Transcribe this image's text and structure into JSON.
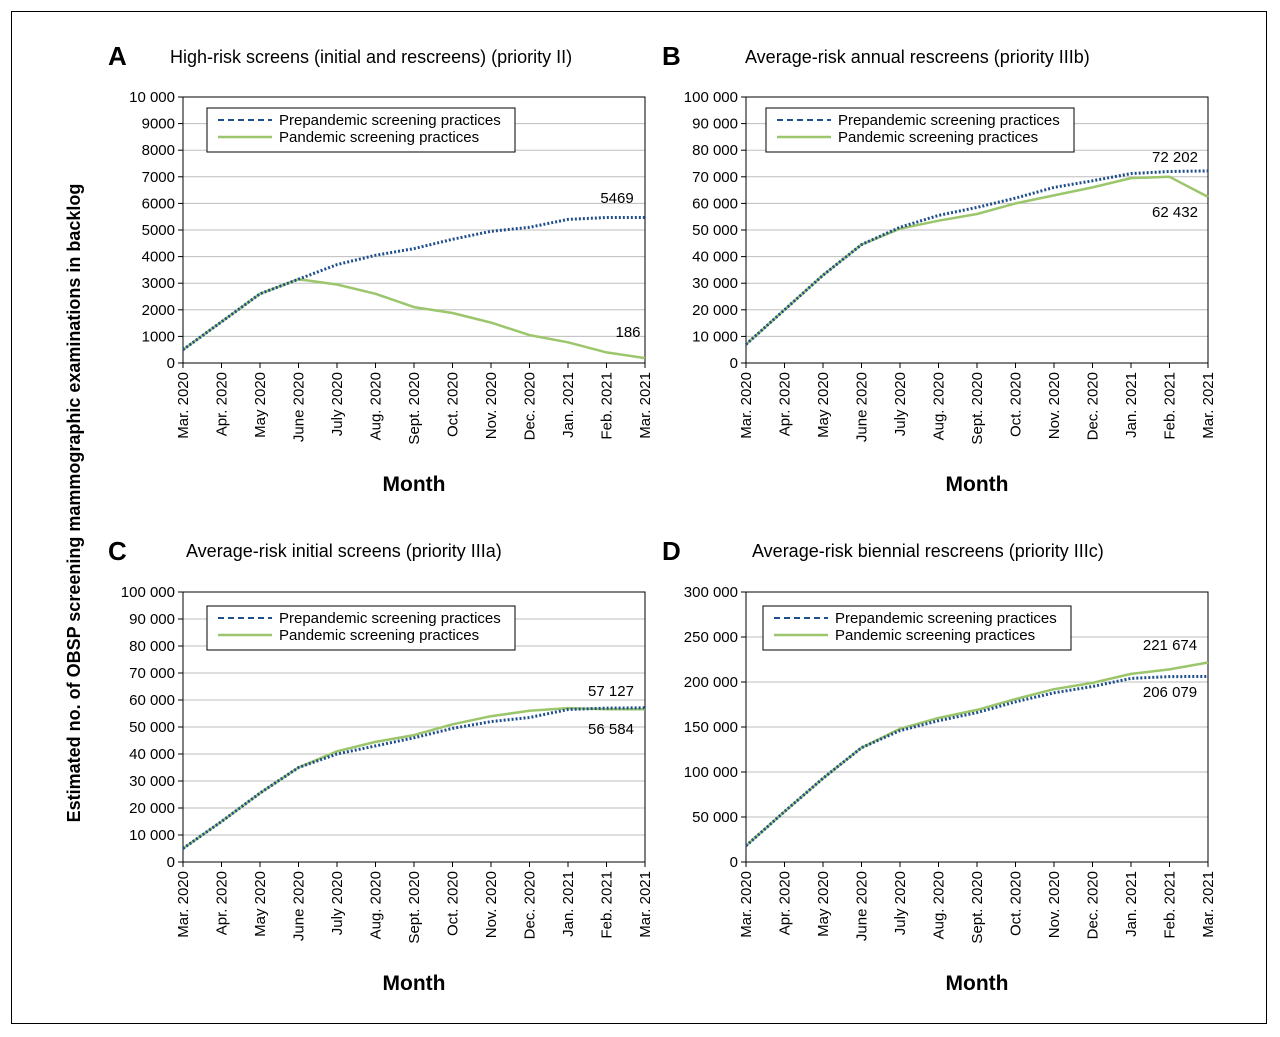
{
  "figure": {
    "ylabel": "Estimated no. of OBSP screening mammographic examinations in backlog",
    "xlabel": "Month",
    "legend": {
      "prepandemic": "Prepandemic screening practices",
      "pandemic": "Pandemic screening practices"
    },
    "colors": {
      "prepandemic": "#1f4e8c",
      "pandemic": "#9bc66b",
      "grid": "#bdbdbd"
    }
  },
  "chart_data": [
    {
      "panel": "A",
      "type": "line",
      "title": "High-risk screens (initial and rescreens) (priority II)",
      "xlabel": "Month",
      "categories": [
        "Mar. 2020",
        "Apr. 2020",
        "May 2020",
        "June 2020",
        "July 2020",
        "Aug. 2020",
        "Sept. 2020",
        "Oct. 2020",
        "Nov. 2020",
        "Dec. 2020",
        "Jan. 2021",
        "Feb. 2021",
        "Mar. 2021"
      ],
      "ylim": [
        0,
        10000
      ],
      "yticks": [
        "0",
        "1000",
        "2000",
        "3000",
        "4000",
        "5000",
        "6000",
        "7000",
        "8000",
        "9000",
        "10 000"
      ],
      "legend": "top-left",
      "grid": true,
      "series": [
        {
          "name": "Prepandemic screening practices",
          "values": [
            500,
            1550,
            2600,
            3150,
            3700,
            4050,
            4300,
            4650,
            4950,
            5100,
            5400,
            5469,
            5469
          ]
        },
        {
          "name": "Pandemic screening practices",
          "values": [
            500,
            1550,
            2600,
            3150,
            2950,
            2600,
            2100,
            1880,
            1520,
            1050,
            780,
            400,
            186
          ]
        }
      ],
      "annotations": [
        "5469",
        "186"
      ]
    },
    {
      "panel": "B",
      "type": "line",
      "title": "Average-risk annual rescreens (priority IIIb)",
      "xlabel": "Month",
      "categories": [
        "Mar. 2020",
        "Apr. 2020",
        "May 2020",
        "June 2020",
        "July 2020",
        "Aug. 2020",
        "Sept. 2020",
        "Oct. 2020",
        "Nov. 2020",
        "Dec. 2020",
        "Jan. 2021",
        "Feb. 2021",
        "Mar. 2021"
      ],
      "ylim": [
        0,
        100000
      ],
      "yticks": [
        "0",
        "10 000",
        "20 000",
        "30 000",
        "40 000",
        "50 000",
        "60 000",
        "70 000",
        "80 000",
        "90 000",
        "100 000"
      ],
      "legend": "top-left",
      "grid": true,
      "series": [
        {
          "name": "Prepandemic screening practices",
          "values": [
            7000,
            20000,
            33000,
            44500,
            51000,
            55500,
            58500,
            62000,
            66000,
            68500,
            71200,
            72000,
            72202
          ]
        },
        {
          "name": "Pandemic screening practices",
          "values": [
            7000,
            20000,
            33000,
            44500,
            50500,
            53500,
            56000,
            60000,
            63000,
            66000,
            69500,
            70000,
            62432
          ]
        }
      ],
      "annotations": [
        "72 202",
        "62 432"
      ]
    },
    {
      "panel": "C",
      "type": "line",
      "title": "Average-risk initial screens (priority IIIa)",
      "xlabel": "Month",
      "categories": [
        "Mar. 2020",
        "Apr. 2020",
        "May 2020",
        "June 2020",
        "July 2020",
        "Aug. 2020",
        "Sept. 2020",
        "Oct. 2020",
        "Nov. 2020",
        "Dec. 2020",
        "Jan. 2021",
        "Feb. 2021",
        "Mar. 2021"
      ],
      "ylim": [
        0,
        100000
      ],
      "yticks": [
        "0",
        "10 000",
        "20 000",
        "30 000",
        "40 000",
        "50 000",
        "60 000",
        "70 000",
        "80 000",
        "90 000",
        "100 000"
      ],
      "legend": "top-left",
      "grid": true,
      "series": [
        {
          "name": "Prepandemic screening practices",
          "values": [
            5000,
            15000,
            25500,
            35000,
            40000,
            43000,
            46000,
            49500,
            52000,
            53500,
            56500,
            57000,
            57127
          ]
        },
        {
          "name": "Pandemic screening practices",
          "values": [
            5000,
            15000,
            25500,
            35000,
            41000,
            44500,
            47000,
            51000,
            54000,
            56000,
            57000,
            56600,
            56584
          ]
        }
      ],
      "annotations": [
        "57 127",
        "56 584"
      ]
    },
    {
      "panel": "D",
      "type": "line",
      "title": "Average-risk biennial rescreens (priority IIIc)",
      "xlabel": "Month",
      "categories": [
        "Mar. 2020",
        "Apr. 2020",
        "May 2020",
        "June 2020",
        "July 2020",
        "Aug. 2020",
        "Sept. 2020",
        "Oct. 2020",
        "Nov. 2020",
        "Dec. 2020",
        "Jan. 2021",
        "Feb. 2021",
        "Mar. 2021"
      ],
      "ylim": [
        0,
        300000
      ],
      "yticks": [
        "0",
        "50 000",
        "100 000",
        "150 000",
        "200 000",
        "250 000",
        "300 000"
      ],
      "legend": "top-left",
      "grid": true,
      "series": [
        {
          "name": "Prepandemic screening practices",
          "values": [
            18000,
            56000,
            93000,
            127000,
            146000,
            157000,
            166000,
            178000,
            188000,
            195000,
            204000,
            206000,
            206079
          ]
        },
        {
          "name": "Pandemic screening practices",
          "values": [
            18000,
            56000,
            93000,
            127000,
            148000,
            160000,
            169000,
            181000,
            192000,
            199000,
            209000,
            214000,
            221674
          ]
        }
      ],
      "annotations": [
        "221 674",
        "206 079"
      ]
    }
  ]
}
